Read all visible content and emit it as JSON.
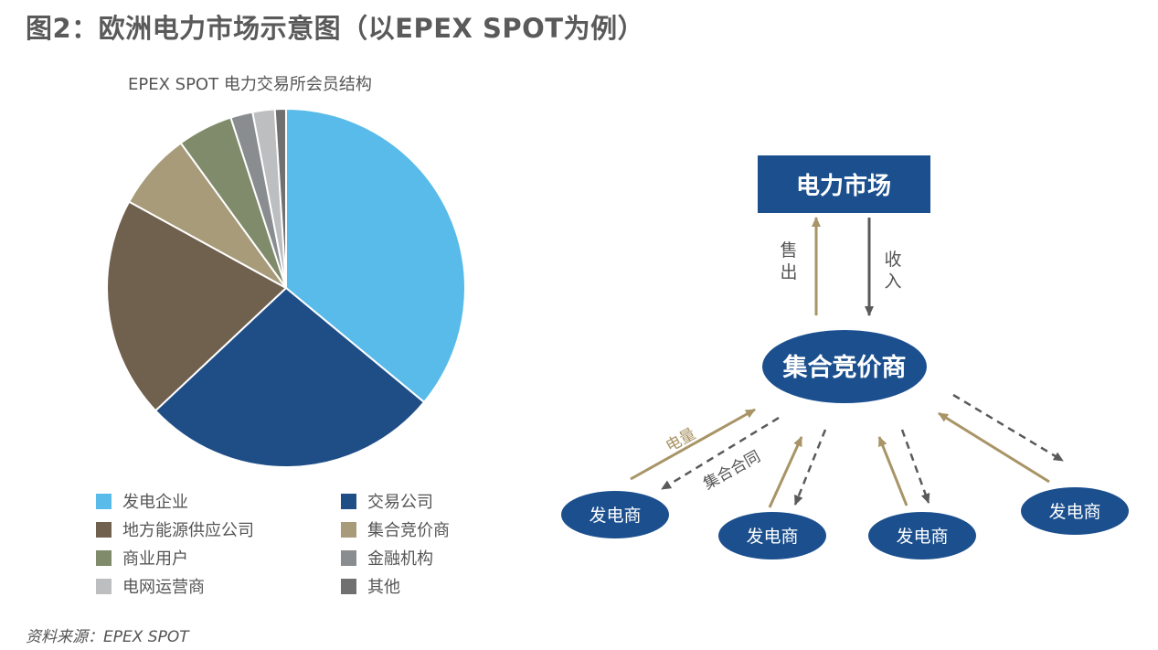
{
  "title": "图2：欧洲电力市场示意图（以EPEX SPOT为例）",
  "chart_data": {
    "type": "pie",
    "title": "EPEX SPOT 电力交易所会员结构",
    "categories": [
      "发电企业",
      "交易公司",
      "地方能源供应公司",
      "集合竞价商",
      "商业用户",
      "金融机构",
      "电网运营商",
      "其他"
    ],
    "values": [
      36,
      27,
      20,
      7,
      5,
      2,
      2,
      1
    ],
    "colors": [
      "#58BBE9",
      "#1F4E87",
      "#70604E",
      "#A89B7A",
      "#7F8B6A",
      "#8A8D90",
      "#BCBEC0",
      "#707070"
    ],
    "legend_position": "bottom"
  },
  "diagram": {
    "market": "电力市场",
    "aggregator": "集合竞价商",
    "sell_label": "售出",
    "income_label": "收入",
    "power_label": "电量",
    "contract_label": "集合合同",
    "generators": [
      "发电商",
      "发电商",
      "发电商",
      "发电商"
    ]
  },
  "colors": {
    "node_blue": "#1B4F8E",
    "arrow_tan": "#A89466",
    "arrow_dark": "#5A5A5A"
  },
  "source": "资料来源：EPEX SPOT"
}
